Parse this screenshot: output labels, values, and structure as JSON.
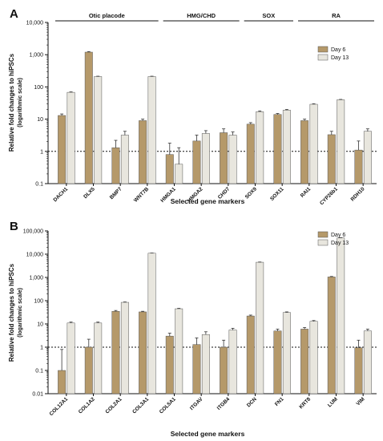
{
  "figure": {
    "colors": {
      "day6": "#b5996a",
      "day13": "#e8e6de",
      "axis": "#111111",
      "error": "#333333"
    }
  },
  "chart_data": [
    {
      "type": "bar",
      "panel": "A",
      "ylabel": "Relative fold changes to hiPSCs",
      "ylabel_sub": "(logarithmic scale)",
      "xlabel": "Selected gene markers",
      "yscale": "log",
      "ylim": [
        0.1,
        10000
      ],
      "y_ticks": [
        0.1,
        1,
        10,
        100,
        1000,
        10000
      ],
      "y_tick_labels": [
        "0.1",
        "1",
        "10",
        "100",
        "1,000",
        "10,000"
      ],
      "reference_line": 1,
      "legend_position": "right",
      "categories": [
        "DACH1",
        "DLX5",
        "BMP7",
        "WNT7B",
        "HMGA1",
        "HMGA2",
        "CHD7",
        "SOX9",
        "SOX11",
        "RAI1",
        "CYP26b1",
        "RDH10"
      ],
      "groups": [
        {
          "label": "Otic placode",
          "from": 0,
          "to": 3
        },
        {
          "label": "HMG/CHD",
          "from": 4,
          "to": 6
        },
        {
          "label": "SOX",
          "from": 7,
          "to": 8
        },
        {
          "label": "RA",
          "from": 9,
          "to": 11
        }
      ],
      "series": [
        {
          "name": "Day 6",
          "values": [
            13,
            1200,
            1.3,
            9,
            0.8,
            2.1,
            3.8,
            7,
            14,
            9,
            3.3,
            1.1
          ],
          "errors": [
            14.5,
            1250,
            2.2,
            10,
            1.8,
            3.2,
            5,
            7.8,
            15,
            10,
            4.2,
            2.1
          ]
        },
        {
          "name": "Day 13",
          "values": [
            68,
            210,
            3.2,
            210,
            0.4,
            3.6,
            3.2,
            17,
            19,
            29,
            40,
            4.2
          ],
          "errors": [
            70,
            215,
            4.2,
            215,
            1.3,
            4.4,
            4,
            18,
            20,
            30,
            41,
            5
          ]
        }
      ]
    },
    {
      "type": "bar",
      "panel": "B",
      "ylabel": "Relative fold changes to hiPSCs",
      "ylabel_sub": "(logarithmic scale)",
      "xlabel": "Selected gene markers",
      "yscale": "log",
      "ylim": [
        0.01,
        100000
      ],
      "y_ticks": [
        0.01,
        0.1,
        1,
        10,
        100,
        1000,
        10000,
        100000
      ],
      "y_tick_labels": [
        "0.01",
        "0.1",
        "1",
        "10",
        "100",
        "1,000",
        "10,000",
        "100,000"
      ],
      "reference_line": 1,
      "legend_position": "top-right",
      "categories": [
        "COL12A1",
        "COL1A2",
        "COL2A1",
        "COL3A1",
        "COL5A1",
        "ITGAV",
        "ITGB4",
        "DCN",
        "FN1",
        "KRT8",
        "LUM",
        "VIM"
      ],
      "series": [
        {
          "name": "Day 6",
          "values": [
            0.1,
            1,
            35,
            33,
            3,
            1.3,
            1,
            22,
            5,
            6,
            1050,
            0.95
          ],
          "errors": [
            0.8,
            2.2,
            38,
            35,
            4,
            2.5,
            2,
            24,
            6,
            7,
            1100,
            2
          ]
        },
        {
          "name": "Day 13",
          "values": [
            11,
            11,
            85,
            11000,
            45,
            3.5,
            5.5,
            4500,
            31,
            13,
            50000,
            5
          ],
          "errors": [
            12,
            12,
            88,
            11200,
            47,
            4.6,
            6.5,
            4600,
            33,
            14,
            51000,
            6
          ]
        }
      ]
    }
  ]
}
